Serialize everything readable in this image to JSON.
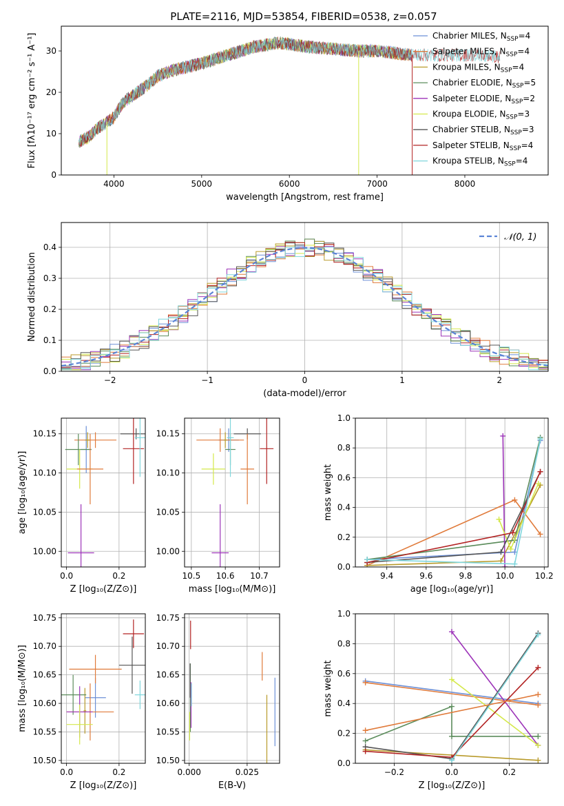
{
  "figure_title": "PLATE=2116, MJD=53854, FIBERID=0538, z=0.057",
  "series_styles": [
    {
      "name": "Chabrier MILES, N_SSP=4",
      "color": "#6b8fd6"
    },
    {
      "name": "Salpeter MILES, N_SSP=4",
      "color": "#e07a3a"
    },
    {
      "name": "Kroupa MILES, N_SSP=4",
      "color": "#b89a2a"
    },
    {
      "name": "Chabrier ELODIE, N_SSP=5",
      "color": "#5b8c5b"
    },
    {
      "name": "Salpeter ELODIE, N_SSP=2",
      "color": "#9c33b8"
    },
    {
      "name": "Kroupa ELODIE, N_SSP=3",
      "color": "#d4e84a"
    },
    {
      "name": "Chabrier STELIB, N_SSP=3",
      "color": "#555555"
    },
    {
      "name": "Salpeter STELIB, N_SSP=4",
      "color": "#b22222"
    },
    {
      "name": "Kroupa STELIB, N_SSP=4",
      "color": "#7fd6dc"
    }
  ],
  "legend_labels": [
    {
      "base": "Chabrier MILES, N",
      "sub": "SSP",
      "tail": "=4"
    },
    {
      "base": "Salpeter MILES, N",
      "sub": "SSP",
      "tail": "=4"
    },
    {
      "base": "Kroupa MILES, N",
      "sub": "SSP",
      "tail": "=4"
    },
    {
      "base": "Chabrier ELODIE, N",
      "sub": "SSP",
      "tail": "=5"
    },
    {
      "base": "Salpeter ELODIE, N",
      "sub": "SSP",
      "tail": "=2"
    },
    {
      "base": "Kroupa ELODIE, N",
      "sub": "SSP",
      "tail": "=3"
    },
    {
      "base": "Chabrier STELIB, N",
      "sub": "SSP",
      "tail": "=3"
    },
    {
      "base": "Salpeter STELIB, N",
      "sub": "SSP",
      "tail": "=4"
    },
    {
      "base": "Kroupa STELIB, N",
      "sub": "SSP",
      "tail": "=4"
    }
  ],
  "chart_data": [
    {
      "id": "spectrum",
      "type": "line",
      "xlabel": "wavelength [Angstrom, rest frame]",
      "ylabel": "Flux [fλ10⁻¹⁷ erg cm⁻² s⁻¹ A⁻¹]",
      "xlim": [
        3400,
        8950
      ],
      "ylim": [
        0,
        36
      ],
      "xticks": [
        4000,
        5000,
        6000,
        7000,
        8000
      ],
      "yticks": [
        0,
        10,
        20,
        30
      ],
      "continuum": {
        "wavelength": [
          3600,
          3700,
          3800,
          3900,
          4000,
          4100,
          4200,
          4300,
          4400,
          4500,
          4700,
          5000,
          5300,
          5600,
          5900,
          6200,
          6500,
          6800,
          7000,
          7200,
          7400,
          7600,
          7800,
          8000,
          8200,
          8400,
          8600,
          8800
        ],
        "flux": [
          8,
          9,
          11,
          12.5,
          14,
          17.5,
          19,
          20.5,
          22,
          24,
          25.5,
          27,
          29,
          31,
          32,
          31,
          30.5,
          30,
          30,
          29.5,
          29,
          29,
          29,
          29,
          29,
          28.5,
          28.5,
          28.5
        ]
      },
      "spikes": [
        {
          "series": 5,
          "wavelength": 3920,
          "flux": 0
        },
        {
          "series": 5,
          "wavelength": 6790,
          "flux": 0
        },
        {
          "series": 7,
          "wavelength": 7400,
          "flux": 0
        }
      ],
      "grid": false,
      "legend_position": "top-right"
    },
    {
      "id": "residuals",
      "type": "step",
      "xlabel": "(data-model)/error",
      "ylabel": "Normed distribution",
      "xlim": [
        -2.5,
        2.5
      ],
      "ylim": [
        0,
        0.48
      ],
      "xticks": [
        -2,
        -1,
        0,
        1,
        2
      ],
      "yticks": [
        0.0,
        0.1,
        0.2,
        0.3,
        0.4
      ],
      "bin_width": 0.1,
      "reference_curve": "N(0,1)",
      "reference_label": "𝒩(0, 1)",
      "grid": true,
      "legend_position": "top-right"
    },
    {
      "id": "age_vs_Z",
      "type": "errorbar",
      "xlabel": "Z [log₁₀(Z/Z⊙)]",
      "ylabel": "age  [log₁₀(age/yr)]",
      "xlim": [
        -0.02,
        0.3
      ],
      "ylim": [
        9.98,
        10.17
      ],
      "xticks": [
        0.0,
        0.2
      ],
      "yticks": [
        10.0,
        10.05,
        10.1,
        10.15
      ],
      "points": [
        {
          "series": 0,
          "x": 0.075,
          "xerr": 0.02,
          "y": 10.13,
          "yerr": 0.03
        },
        {
          "series": 1,
          "x": 0.11,
          "xerr": 0.08,
          "y": 10.142,
          "yerr": 0.01
        },
        {
          "series": 2,
          "x": 0.08,
          "xerr": 0.01,
          "y": 10.142,
          "yerr": 0.01
        },
        {
          "series": 3,
          "x": 0.045,
          "xerr": 0.05,
          "y": 10.13,
          "yerr": 0.02
        },
        {
          "series": 4,
          "x": 0.055,
          "xerr": 0.05,
          "y": 9.998,
          "yerr": 0.062
        },
        {
          "series": 5,
          "x": 0.05,
          "xerr": 0.05,
          "y": 10.105,
          "yerr": 0.025
        },
        {
          "series": 6,
          "x": 0.265,
          "xerr": 0.06,
          "y": 10.15,
          "yerr": 0.007
        },
        {
          "series": 7,
          "x": 0.255,
          "xerr": 0.04,
          "y": 10.131,
          "yerr": 0.045
        },
        {
          "series": 8,
          "x": 0.28,
          "xerr": 0.02,
          "y": 10.145,
          "yerr": 0.05
        },
        {
          "series": 1,
          "x": 0.09,
          "xerr": 0.05,
          "y": 10.105,
          "yerr": 0.045
        }
      ]
    },
    {
      "id": "age_vs_mass",
      "type": "errorbar",
      "xlabel": "mass [log₁₀(M/M⊙)]",
      "ylabel": "",
      "xlim": [
        10.48,
        10.76
      ],
      "ylim": [
        9.98,
        10.17
      ],
      "xticks": [
        10.5,
        10.6,
        10.7
      ],
      "yticks": [
        10.0,
        10.05,
        10.1,
        10.15
      ],
      "points": [
        {
          "series": 0,
          "x": 10.61,
          "xerr": 0.03,
          "y": 10.142,
          "yerr": 0.015
        },
        {
          "series": 1,
          "x": 10.585,
          "xerr": 0.07,
          "y": 10.142,
          "yerr": 0.015
        },
        {
          "series": 2,
          "x": 10.6,
          "xerr": 0.005,
          "y": 10.142,
          "yerr": 0.01
        },
        {
          "series": 3,
          "x": 10.615,
          "xerr": 0.015,
          "y": 10.13,
          "yerr": 0.02
        },
        {
          "series": 4,
          "x": 10.585,
          "xerr": 0.025,
          "y": 9.998,
          "yerr": 0.062
        },
        {
          "series": 5,
          "x": 10.565,
          "xerr": 0.035,
          "y": 10.105,
          "yerr": 0.02
        },
        {
          "series": 6,
          "x": 10.665,
          "xerr": 0.04,
          "y": 10.15,
          "yerr": 0.007
        },
        {
          "series": 7,
          "x": 10.722,
          "xerr": 0.02,
          "y": 10.131,
          "yerr": 0.045
        },
        {
          "series": 8,
          "x": 10.615,
          "xerr": 0.01,
          "y": 10.145,
          "yerr": 0.05
        },
        {
          "series": 1,
          "x": 10.665,
          "xerr": 0.02,
          "y": 10.105,
          "yerr": 0.045
        }
      ]
    },
    {
      "id": "weight_vs_age",
      "type": "line",
      "xlabel": "age  [log₁₀(age/yr)]",
      "ylabel": "mass weight",
      "xlim": [
        9.24,
        10.22
      ],
      "ylim": [
        0,
        1.0
      ],
      "xticks": [
        9.4,
        9.6,
        9.8,
        10.0,
        10.2
      ],
      "yticks": [
        0.0,
        0.2,
        0.4,
        0.6,
        0.8,
        1.0
      ],
      "grid": true,
      "series": [
        {
          "series": 0,
          "x": [
            9.3,
            10.05,
            10.18
          ],
          "y": [
            0.05,
            0.1,
            0.85
          ]
        },
        {
          "series": 1,
          "x": [
            9.3,
            10.05,
            10.18
          ],
          "y": [
            0.01,
            0.45,
            0.22
          ]
        },
        {
          "series": 2,
          "x": [
            9.3,
            9.98,
            10.18
          ],
          "y": [
            0.01,
            0.04,
            0.55
          ]
        },
        {
          "series": 3,
          "x": [
            9.3,
            10.05,
            10.18
          ],
          "y": [
            0.05,
            0.18,
            0.87
          ]
        },
        {
          "series": 4,
          "x": [
            9.99,
            10.0
          ],
          "y": [
            0.88,
            0.0
          ]
        },
        {
          "series": 5,
          "x": [
            9.97,
            10.03,
            10.17
          ],
          "y": [
            0.32,
            0.12,
            0.56
          ]
        },
        {
          "series": 6,
          "x": [
            9.3,
            9.98,
            10.18
          ],
          "y": [
            0.03,
            0.1,
            0.64
          ]
        },
        {
          "series": 7,
          "x": [
            9.3,
            10.04,
            10.18
          ],
          "y": [
            0.03,
            0.23,
            0.64
          ]
        },
        {
          "series": 8,
          "x": [
            9.3,
            10.05,
            10.18
          ],
          "y": [
            0.05,
            0.02,
            0.86
          ]
        }
      ]
    },
    {
      "id": "mass_vs_Z",
      "type": "errorbar",
      "xlabel": "Z [log₁₀(Z/Z⊙)]",
      "ylabel": "mass [log₁₀(M/M⊙)]",
      "xlim": [
        -0.02,
        0.3
      ],
      "ylim": [
        10.495,
        10.757
      ],
      "xticks": [
        0.0,
        0.2
      ],
      "yticks": [
        10.5,
        10.55,
        10.6,
        10.65,
        10.7,
        10.75
      ],
      "points": [
        {
          "series": 0,
          "x": 0.11,
          "xerr": 0.04,
          "y": 10.61,
          "yerr": 0.035
        },
        {
          "series": 1,
          "x": 0.09,
          "xerr": 0.09,
          "y": 10.585,
          "yerr": 0.05
        },
        {
          "series": 2,
          "x": 0.07,
          "xerr": 0.005,
          "y": 10.587,
          "yerr": 0.04
        },
        {
          "series": 3,
          "x": 0.025,
          "xerr": 0.05,
          "y": 10.615,
          "yerr": 0.035
        },
        {
          "series": 4,
          "x": 0.05,
          "xerr": 0.05,
          "y": 10.585,
          "yerr": 0.045
        },
        {
          "series": 5,
          "x": 0.05,
          "xerr": 0.05,
          "y": 10.563,
          "yerr": 0.035
        },
        {
          "series": 6,
          "x": 0.25,
          "xerr": 0.05,
          "y": 10.667,
          "yerr": 0.05
        },
        {
          "series": 7,
          "x": 0.255,
          "xerr": 0.04,
          "y": 10.722,
          "yerr": 0.025
        },
        {
          "series": 8,
          "x": 0.28,
          "xerr": 0.02,
          "y": 10.615,
          "yerr": 0.025
        },
        {
          "series": 1,
          "x": 0.11,
          "xerr": 0.1,
          "y": 10.66,
          "yerr": 0.025
        }
      ]
    },
    {
      "id": "mass_vs_ebv",
      "type": "errorbar",
      "xlabel": "E(B-V)",
      "ylabel": "",
      "xlim": [
        -0.002,
        0.039
      ],
      "ylim": [
        10.495,
        10.757
      ],
      "xticks": [
        0.0,
        0.025
      ],
      "yticks": [
        10.5,
        10.55,
        10.6,
        10.65,
        10.7,
        10.75
      ],
      "points": [
        {
          "series": 0,
          "x": 0.037,
          "xerr": 0,
          "y": 10.585,
          "yerr": 0.06
        },
        {
          "series": 1,
          "x": 0.0315,
          "xerr": 0,
          "y": 10.665,
          "yerr": 0.025
        },
        {
          "series": 2,
          "x": 0.0335,
          "xerr": 0,
          "y": 10.555,
          "yerr": 0.06
        },
        {
          "series": 3,
          "x": 0.0005,
          "xerr": 0,
          "y": 10.61,
          "yerr": 0.06
        },
        {
          "series": 4,
          "x": 0.0008,
          "xerr": 0,
          "y": 10.597,
          "yerr": 0.04
        },
        {
          "series": 5,
          "x": 0.0002,
          "xerr": 0,
          "y": 10.56,
          "yerr": 0.025
        },
        {
          "series": 6,
          "x": 0.0004,
          "xerr": 0,
          "y": 10.64,
          "yerr": 0.03
        },
        {
          "series": 7,
          "x": 0.0006,
          "xerr": 0,
          "y": 10.72,
          "yerr": 0.025
        },
        {
          "series": 8,
          "x": 0.001,
          "xerr": 0,
          "y": 10.615,
          "yerr": 0.02
        }
      ]
    },
    {
      "id": "weight_vs_Z",
      "type": "line",
      "xlabel": "Z [log₁₀(Z/Z⊙)]",
      "ylabel": "mass weight",
      "xlim": [
        -0.335,
        0.335
      ],
      "ylim": [
        0,
        1.0
      ],
      "xticks": [
        -0.2,
        0.0,
        0.2
      ],
      "yticks": [
        0.0,
        0.2,
        0.4,
        0.6,
        0.8,
        1.0
      ],
      "grid": true,
      "series": [
        {
          "series": 0,
          "x": [
            -0.3,
            0.3
          ],
          "y": [
            0.55,
            0.4
          ]
        },
        {
          "series": 1,
          "x": [
            -0.3,
            0.3
          ],
          "y": [
            0.54,
            0.39
          ]
        },
        {
          "series": 2,
          "x": [
            -0.3,
            0.3
          ],
          "y": [
            0.09,
            0.02
          ]
        },
        {
          "series": 3,
          "x": [
            -0.3,
            0.0,
            0.0,
            0.3
          ],
          "y": [
            0.15,
            0.38,
            0.18,
            0.18
          ]
        },
        {
          "series": 4,
          "x": [
            0.0,
            0.3
          ],
          "y": [
            0.88,
            0.12
          ]
        },
        {
          "series": 5,
          "x": [
            0.0,
            0.3
          ],
          "y": [
            0.56,
            0.12
          ]
        },
        {
          "series": 6,
          "x": [
            -0.3,
            0.0,
            0.3
          ],
          "y": [
            0.11,
            0.03,
            0.87
          ]
        },
        {
          "series": 7,
          "x": [
            -0.3,
            0.0,
            0.3
          ],
          "y": [
            0.08,
            0.04,
            0.64
          ]
        },
        {
          "series": 8,
          "x": [
            0.0,
            0.3
          ],
          "y": [
            0.02,
            0.86
          ]
        },
        {
          "series": 1,
          "x": [
            -0.3,
            0.3
          ],
          "y": [
            0.22,
            0.46
          ]
        }
      ]
    }
  ]
}
